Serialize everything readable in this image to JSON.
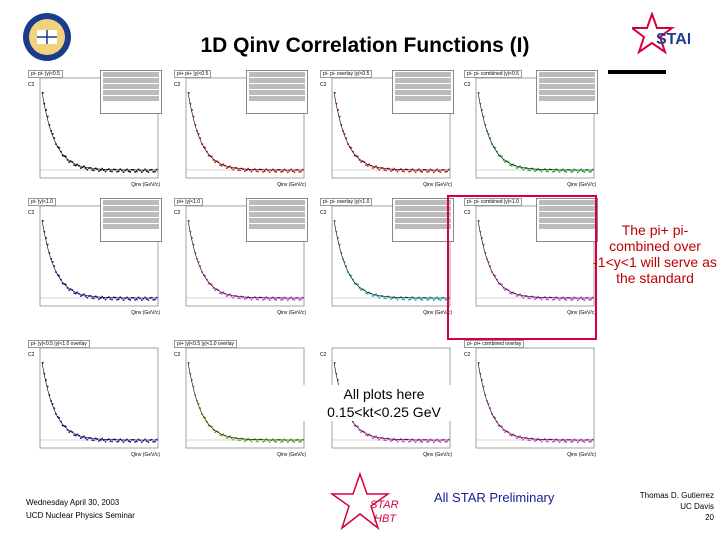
{
  "slide": {
    "title": "1D Qinv Correlation Functions (I)",
    "note_right": "The pi+ pi- combined over -1<y<1 will serve as the standard",
    "note_mid_lines": [
      "All plots here",
      "0.15<kt<0.25 GeV"
    ],
    "footer_left_lines": [
      "Wednesday April 30, 2003",
      "UCD Nuclear Physics Seminar"
    ],
    "footer_center": "All STAR Preliminary",
    "footer_right_lines": [
      "Thomas D. Gutierrez",
      "UC Davis",
      "20"
    ],
    "logo_star_text": "STAR",
    "logo_hbt_lines": [
      "STAR",
      "HBT"
    ]
  },
  "panels": {
    "titles": [
      "pi- pi- |y|<0.5",
      "pi+ pi+ |y|<0.5",
      "pi- pi- overlay |y|<0.5",
      "pi- pi- combined |y|<0.5",
      "pi- |y|<1.0",
      "pi+ |y|<1.0",
      "pi- pi- overlay |y|<1.0",
      "pi- pi- combined |y|<1.0",
      "pi- |y|<0.5 |y|<1.0 overlay",
      "pi+ |y|<0.5 |y|<1.0 overlay",
      "",
      "pi- pi+ combined overlay"
    ],
    "ylabel": "C2",
    "xlabel": "Qinv (GeV/c)",
    "x_ticks": [
      "0",
      "0.1",
      "0.2",
      "0.3",
      "0.4",
      "0.5",
      "0.6",
      "0.7",
      "0.8",
      "0.9"
    ],
    "y_ticks": [
      "1",
      "1.2",
      "1.4",
      "1.6",
      "1.8",
      "2",
      "2.2"
    ]
  },
  "colors": {
    "selection_box": "#d8003a",
    "note_right": "#c00000",
    "footer_center": "#1a1a9c",
    "star_logo": "#d8003a",
    "uc_logo": "#1b3c8c"
  }
}
